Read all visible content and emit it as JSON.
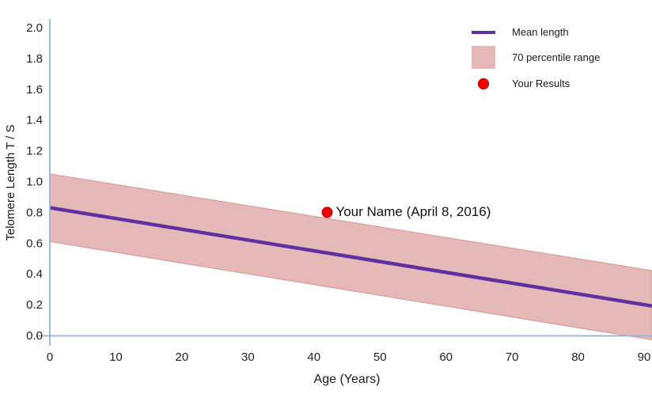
{
  "chart_data": {
    "type": "line",
    "title": "",
    "xlabel": "Age (Years)",
    "ylabel": "Telomere Length T / S",
    "xlim": [
      0,
      90
    ],
    "ylim": [
      0,
      2
    ],
    "x_ticks": [
      0,
      10,
      20,
      30,
      40,
      50,
      60,
      70,
      80,
      90
    ],
    "y_ticks": [
      "2.0",
      "1.8",
      "1.6",
      "1.4",
      "1.2",
      "1.0",
      "0.8",
      "0.6",
      "0.4",
      "0.2",
      "0.0"
    ],
    "grid": false,
    "legend_position": "top-right",
    "series": [
      {
        "name": "Mean length",
        "type": "line",
        "x": [
          0,
          90
        ],
        "y": [
          0.83,
          0.2
        ],
        "color": "#6130A0"
      },
      {
        "name": "70 percentile range",
        "type": "band",
        "x": [
          0,
          90
        ],
        "upper": [
          1.05,
          0.43
        ],
        "lower": [
          0.61,
          -0.02
        ],
        "color": "#E5B9B8",
        "edge_color": "#D89593"
      },
      {
        "name": "Your Results",
        "type": "point",
        "x": 42,
        "y": 0.8,
        "color": "#EE0000",
        "edge_color": "#BF0000",
        "label": "Your Name (April 8, 2016)"
      }
    ]
  },
  "colors": {
    "axis": "#95B3D7",
    "text": "#1A1A1A"
  }
}
